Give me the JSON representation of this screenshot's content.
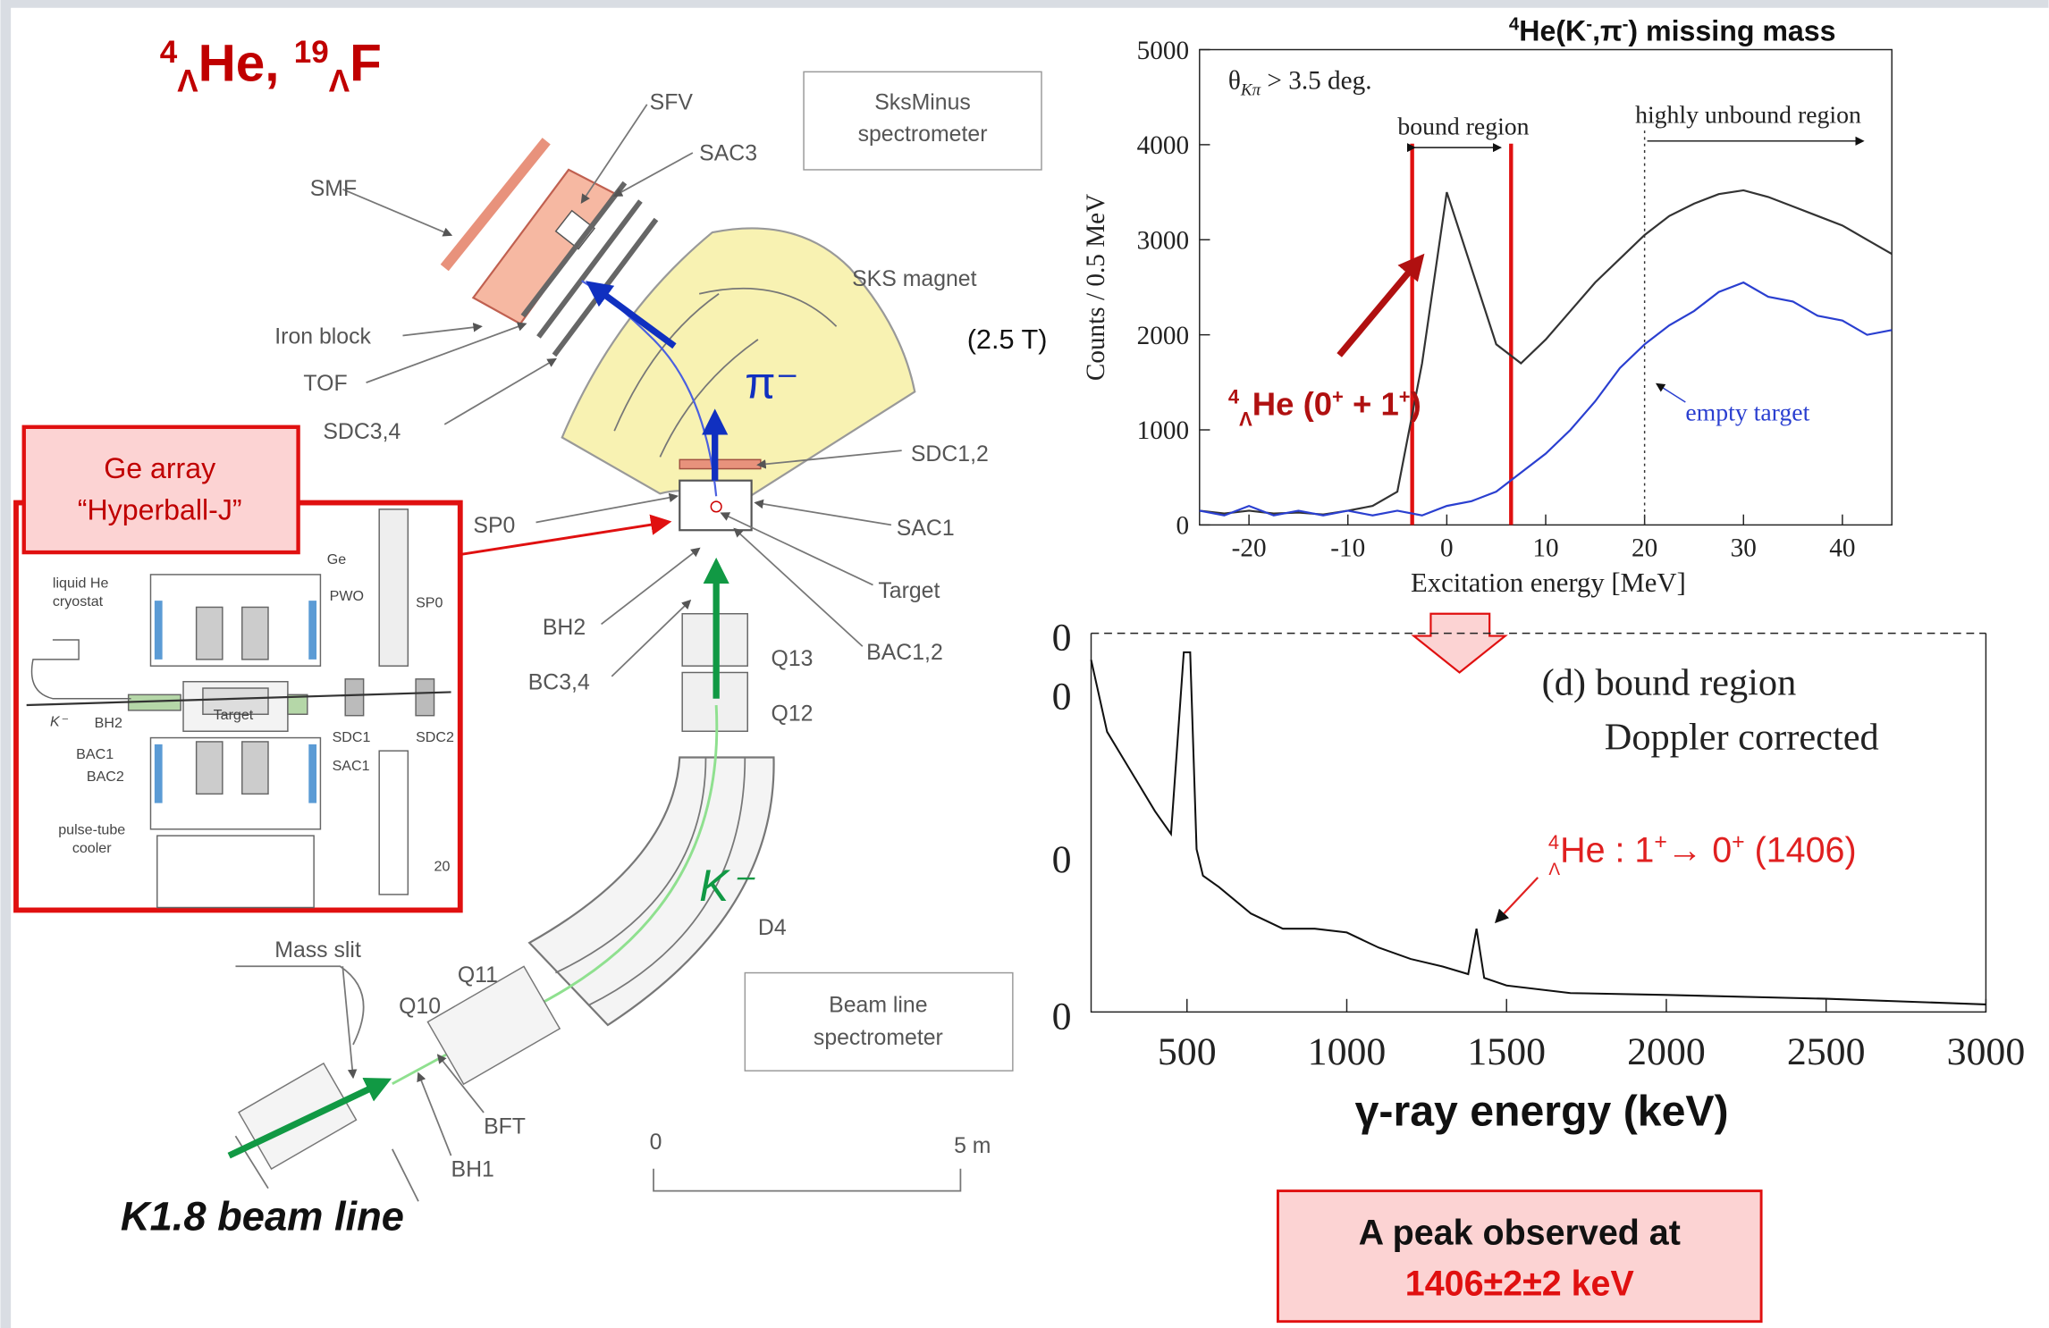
{
  "title": [
    "4",
    "Λ",
    "He, ",
    "19",
    "Λ",
    "F"
  ],
  "detector": {
    "sfv": "SFV",
    "sac3": "SAC3",
    "sksminus": [
      "SksMinus",
      "spectrometer"
    ],
    "smf": "SMF",
    "sks_magnet": "SKS magnet",
    "iron_block": "Iron block",
    "tof": "TOF",
    "sdc34": "SDC3,4",
    "field": "(2.5 T)",
    "pion": "π⁻",
    "sdc12": "SDC1,2",
    "sp0": "SP0",
    "sac1": "SAC1",
    "target": "Target",
    "bh2": "BH2",
    "bac12": "BAC1,2",
    "bc34": "BC3,4",
    "q13": "Q13",
    "q12": "Q12",
    "kaon": "K⁻",
    "d4": "D4",
    "mass_slit": "Mass slit",
    "q11": "Q11",
    "q10": "Q10",
    "beamline_box": [
      "Beam line",
      "spectrometer"
    ],
    "bft": "BFT",
    "bh1": "BH1",
    "scale_0": "0",
    "scale_5": "5 m",
    "beam_line": "K1.8 beam line"
  },
  "ge_array": [
    "Ge array",
    "“Hyperball-J”"
  ],
  "inset": {
    "cryostat": [
      "liquid He",
      "cryostat"
    ],
    "ge": "Ge",
    "pwo": "PWO",
    "sp0": "SP0",
    "k": "K⁻",
    "bh2": "BH2",
    "target": "Target",
    "sdc1": "SDC1",
    "sdc2": "SDC2",
    "sac1": "SAC1",
    "bac1": "BAC1",
    "bac2": "BAC2",
    "cooler": [
      "pulse-tube",
      "cooler"
    ],
    "scale": "20"
  },
  "missing_mass": {
    "title": [
      "4",
      "He(K",
      "-",
      ",π",
      "-",
      ") missing mass"
    ],
    "cut": [
      "θ",
      "Kπ",
      " > 3.5 deg."
    ],
    "bound_region": "bound region",
    "unbound_region": "highly unbound region",
    "empty_target": "empty target",
    "peak_label": [
      "4",
      "Λ",
      "He (0",
      "+",
      " + 1",
      "+",
      ")"
    ],
    "y_label": "Counts / 0.5 MeV",
    "x_label": "Excitation energy [MeV]",
    "xlim": [
      -25,
      45
    ],
    "ylim": [
      0,
      5000
    ],
    "xticks": [
      -20,
      -10,
      0,
      10,
      20,
      30,
      40
    ],
    "yticks": [
      0,
      1000,
      2000,
      3000,
      4000,
      5000
    ],
    "bound_limits": [
      -3.5,
      6.5
    ],
    "unbound_start": 20,
    "x": [
      -25,
      -22.5,
      -20,
      -17.5,
      -15,
      -12.5,
      -10,
      -7.5,
      -5,
      -2.5,
      0,
      2.5,
      5,
      7.5,
      10,
      12.5,
      15,
      17.5,
      20,
      22.5,
      25,
      27.5,
      30,
      32.5,
      35,
      37.5,
      40,
      42.5,
      45
    ],
    "series": [
      {
        "color": "#333333",
        "values": [
          150,
          120,
          150,
          120,
          130,
          110,
          150,
          200,
          350,
          1700,
          3500,
          2700,
          1900,
          1700,
          1950,
          2250,
          2550,
          2800,
          3050,
          3250,
          3380,
          3480,
          3520,
          3450,
          3350,
          3250,
          3150,
          3000,
          2850
        ]
      },
      {
        "color": "#2a3fd0",
        "values": [
          150,
          100,
          200,
          100,
          150,
          100,
          150,
          100,
          150,
          100,
          200,
          250,
          350,
          550,
          750,
          1000,
          1300,
          1650,
          1900,
          2100,
          2250,
          2450,
          2550,
          2400,
          2350,
          2200,
          2150,
          2000,
          2050
        ]
      }
    ]
  },
  "gamma_spectrum": {
    "label": [
      "(d) bound region",
      "Doppler corrected"
    ],
    "peak_label": [
      "4",
      "Λ",
      "He : 1",
      "+",
      "→ 0",
      "+",
      " (1406)"
    ],
    "x_label": "γ-ray energy (keV)",
    "xlim": [
      200,
      3000
    ],
    "ylim": [
      0,
      100
    ],
    "xticks": [
      500,
      1000,
      1500,
      2000,
      2500,
      3000
    ],
    "y_tick_labels": [
      "0",
      "0",
      "0",
      "0"
    ],
    "x": [
      200,
      250,
      300,
      350,
      400,
      450,
      490,
      510,
      530,
      550,
      600,
      700,
      800,
      900,
      1000,
      1100,
      1200,
      1300,
      1380,
      1406,
      1430,
      1500,
      1700,
      2000,
      2500,
      3000
    ],
    "values": [
      93,
      74,
      67,
      60,
      53,
      47,
      95,
      95,
      43,
      36,
      33,
      26,
      22,
      22,
      21,
      17,
      14,
      12,
      10,
      22,
      9,
      7,
      5,
      4.5,
      3.5,
      2
    ],
    "color": "#111111"
  },
  "result": [
    "A peak observed at",
    "1406±2±2 keV"
  ]
}
